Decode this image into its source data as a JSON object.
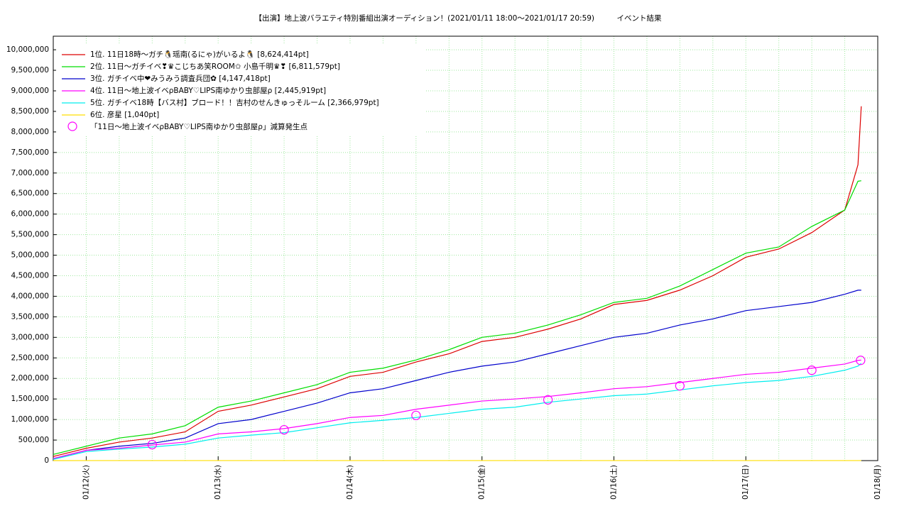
{
  "chart_data": {
    "type": "line",
    "title": "【出演】地上波バラエティ特別番組出演オーディション！(2021/01/11 18:00〜2021/01/17 20:59)　　　イベント結果",
    "x": [
      0.75,
      1,
      1.25,
      1.5,
      1.75,
      2,
      2.25,
      2.5,
      2.75,
      3,
      3.25,
      3.5,
      3.75,
      4,
      4.25,
      4.5,
      4.75,
      5,
      5.25,
      5.5,
      5.75,
      6,
      6.25,
      6.5,
      6.75,
      6.85,
      6.875
    ],
    "series": [
      {
        "name": "1位. 11日18時〜ガチ🐧瑶南(るにゃ)がいるよ🐧 [8,624,414pt]",
        "color": "#dd0000",
        "values": [
          100000,
          300000,
          450000,
          550000,
          700000,
          1200000,
          1350000,
          1550000,
          1750000,
          2050000,
          2150000,
          2400000,
          2600000,
          2900000,
          3000000,
          3200000,
          3450000,
          3800000,
          3900000,
          4150000,
          4500000,
          4950000,
          5150000,
          5550000,
          6100000,
          7200000,
          8624414
        ]
      },
      {
        "name": "2位. 11日〜ガチイベ❣♛こじちあ笑ROOM✩ 小島千明♛❣ [6,811,579pt]",
        "color": "#00dd00",
        "values": [
          150000,
          350000,
          550000,
          650000,
          850000,
          1300000,
          1450000,
          1650000,
          1850000,
          2150000,
          2250000,
          2450000,
          2700000,
          3000000,
          3100000,
          3300000,
          3550000,
          3850000,
          3950000,
          4250000,
          4650000,
          5050000,
          5200000,
          5700000,
          6100000,
          6800000,
          6811579
        ]
      },
      {
        "name": "3位. ガチイベ中❤みうみう調査兵団✿ [4,147,418pt]",
        "color": "#0000cc",
        "values": [
          50000,
          250000,
          350000,
          420000,
          550000,
          900000,
          1000000,
          1200000,
          1400000,
          1650000,
          1750000,
          1950000,
          2150000,
          2300000,
          2400000,
          2600000,
          2800000,
          3000000,
          3100000,
          3300000,
          3450000,
          3650000,
          3750000,
          3850000,
          4050000,
          4147418,
          4147418
        ]
      },
      {
        "name": "4位. 11日〜地上波イベρBABY♡LIPS南ゆかり虫部屋ρ [2,445,919pt]",
        "color": "#ff00ff",
        "values": [
          50000,
          250000,
          300000,
          380000,
          450000,
          650000,
          700000,
          780000,
          900000,
          1050000,
          1100000,
          1250000,
          1350000,
          1450000,
          1500000,
          1560000,
          1650000,
          1750000,
          1800000,
          1900000,
          2000000,
          2100000,
          2150000,
          2250000,
          2350000,
          2440000,
          2445919
        ]
      },
      {
        "name": "5位. ガチイベ18時【バス村】ブロード！！吉村のせんきゅっそルーム [2,366,979pt]",
        "color": "#00eeee",
        "values": [
          30000,
          220000,
          280000,
          330000,
          400000,
          550000,
          620000,
          680000,
          800000,
          920000,
          980000,
          1050000,
          1150000,
          1250000,
          1300000,
          1420000,
          1500000,
          1580000,
          1620000,
          1720000,
          1820000,
          1900000,
          1950000,
          2050000,
          2200000,
          2300000,
          2366979
        ]
      },
      {
        "name": "6位. 彦星 [1,040pt]",
        "color": "#ffdd00",
        "values": [
          0,
          1040,
          1040,
          1040,
          1040,
          1040,
          1040,
          1040,
          1040,
          1040,
          1040,
          1040,
          1040,
          1040,
          1040,
          1040,
          1040,
          1040,
          1040,
          1040,
          1040,
          1040,
          1040,
          1040,
          1040,
          1040,
          1040
        ]
      }
    ],
    "markers": {
      "name": "「11日〜地上波イベρBABY♡LIPS南ゆかり虫部屋ρ」減算発生点",
      "color": "#ff00ff",
      "x": [
        1.5,
        2.5,
        3.5,
        4.5,
        5.5,
        6.5,
        6.87
      ],
      "values": [
        390000,
        750000,
        1100000,
        1480000,
        1820000,
        2200000,
        2440000
      ]
    },
    "xlim": [
      0.75,
      7
    ],
    "xticks": [
      {
        "value": 1,
        "label": "01/12(火)"
      },
      {
        "value": 2,
        "label": "01/13(水)"
      },
      {
        "value": 3,
        "label": "01/14(木)"
      },
      {
        "value": 4,
        "label": "01/15(金)"
      },
      {
        "value": 5,
        "label": "01/16(土)"
      },
      {
        "value": 6,
        "label": "01/17(日)"
      },
      {
        "value": 7,
        "label": "01/18(月)"
      }
    ],
    "ylim": [
      0,
      10330000
    ],
    "yticks": [
      {
        "value": 0,
        "label": "0"
      },
      {
        "value": 500000,
        "label": "500,000"
      },
      {
        "value": 1000000,
        "label": "1,000,000"
      },
      {
        "value": 1500000,
        "label": "1,500,000"
      },
      {
        "value": 2000000,
        "label": "2,000,000"
      },
      {
        "value": 2500000,
        "label": "2,500,000"
      },
      {
        "value": 3000000,
        "label": "3,000,000"
      },
      {
        "value": 3500000,
        "label": "3,500,000"
      },
      {
        "value": 4000000,
        "label": "4,000,000"
      },
      {
        "value": 4500000,
        "label": "4,500,000"
      },
      {
        "value": 5000000,
        "label": "5,000,000"
      },
      {
        "value": 5500000,
        "label": "5,500,000"
      },
      {
        "value": 6000000,
        "label": "6,000,000"
      },
      {
        "value": 6500000,
        "label": "6,500,000"
      },
      {
        "value": 7000000,
        "label": "7,000,000"
      },
      {
        "value": 7500000,
        "label": "7,500,000"
      },
      {
        "value": 8000000,
        "label": "8,000,000"
      },
      {
        "value": 8500000,
        "label": "8,500,000"
      },
      {
        "value": 9000000,
        "label": "9,000,000"
      },
      {
        "value": 9500000,
        "label": "9,500,000"
      },
      {
        "value": 10000000,
        "label": "10,000,000"
      }
    ],
    "grid": true,
    "legend": "upper-left"
  }
}
